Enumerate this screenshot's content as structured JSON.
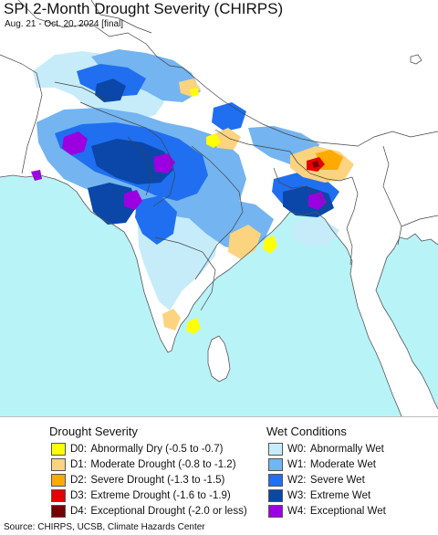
{
  "title": "SPI 2-Month Drought Severity (CHIRPS)",
  "subtitle": "Aug. 21 - Oct. 20, 2024 [final]",
  "colors": {
    "ocean": "#b8f3f8",
    "land": "#ffffff",
    "border": "#444444",
    "D0": "#ffff00",
    "D1": "#fcd37f",
    "D2": "#ffaa00",
    "D3": "#e60000",
    "D4": "#730000",
    "W0": "#c6ecfa",
    "W1": "#74b4f0",
    "W2": "#1f6ff0",
    "W3": "#0a47a8",
    "W4": "#9d00e0"
  },
  "legend": {
    "drought_heading": "Drought Severity",
    "wet_heading": "Wet Conditions",
    "drought": [
      {
        "code": "D0:",
        "label": "Abnormally Dry (-0.5 to -0.7)",
        "color": "#ffff00"
      },
      {
        "code": "D1:",
        "label": "Moderate Drought (-0.8 to -1.2)",
        "color": "#fcd37f"
      },
      {
        "code": "D2:",
        "label": "Severe Drought (-1.3 to -1.5)",
        "color": "#ffaa00"
      },
      {
        "code": "D3:",
        "label": "Extreme Drought (-1.6 to -1.9)",
        "color": "#e60000"
      },
      {
        "code": "D4:",
        "label": "Exceptional Drought (-2.0 or less)",
        "color": "#730000"
      }
    ],
    "wet": [
      {
        "code": "W0:",
        "label": "Abnormally Wet",
        "color": "#c6ecfa"
      },
      {
        "code": "W1:",
        "label": "Moderate Wet",
        "color": "#74b4f0"
      },
      {
        "code": "W2:",
        "label": "Severe Wet",
        "color": "#1f6ff0"
      },
      {
        "code": "W3:",
        "label": "Extreme Wet",
        "color": "#0a47a8"
      },
      {
        "code": "W4:",
        "label": "Exceptional Wet",
        "color": "#9d00e0"
      }
    ]
  },
  "source": "Source: CHIRPS, UCSB, Climate Hazards Center"
}
